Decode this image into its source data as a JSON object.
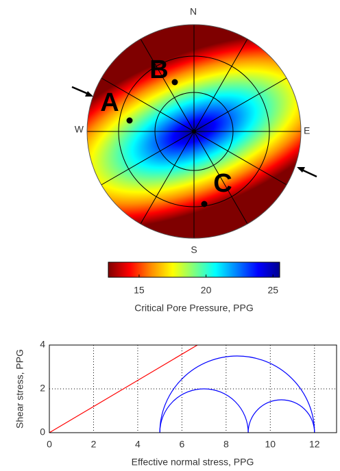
{
  "chart_data": [
    {
      "type": "stereonet",
      "directions": [
        "N",
        "E",
        "S",
        "W"
      ],
      "points": [
        "A",
        "B",
        "C"
      ],
      "colorbar": {
        "label": "Critical Pore Pressure,  PPG",
        "clim": [
          12.7,
          25.5
        ],
        "ticks": [
          15,
          20,
          25
        ],
        "colors": [
          "#7f0000",
          "#ff0000",
          "#ff8c00",
          "#ffff00",
          "#7fff7f",
          "#00ffff",
          "#0080ff",
          "#0000ff",
          "#00008f"
        ]
      }
    },
    {
      "type": "mohr",
      "xlabel": "Effective normal stress,  PPG",
      "ylabel": "Shear stress,  PPG",
      "xlim": [
        0,
        13
      ],
      "ylim": [
        0,
        4
      ],
      "xticks": [
        0,
        2,
        4,
        6,
        8,
        10,
        12
      ],
      "yticks": [
        0,
        2,
        4
      ],
      "grid": true,
      "line": {
        "color": "#ff0000",
        "x": [
          0,
          6.7
        ],
        "y": [
          0,
          4
        ]
      },
      "circle_color": "#0000ff",
      "circles": [
        {
          "min": 5,
          "max": 12
        },
        {
          "min": 5,
          "max": 9
        },
        {
          "min": 9,
          "max": 12
        }
      ]
    }
  ]
}
